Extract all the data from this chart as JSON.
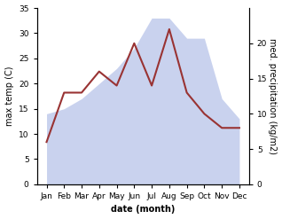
{
  "months": [
    "Jan",
    "Feb",
    "Mar",
    "Apr",
    "May",
    "Jun",
    "Jul",
    "Aug",
    "Sep",
    "Oct",
    "Nov",
    "Dec"
  ],
  "max_temp": [
    14.0,
    15.0,
    17.0,
    20.0,
    23.0,
    27.0,
    33.0,
    33.0,
    29.0,
    29.0,
    17.0,
    13.0
  ],
  "precipitation": [
    6.0,
    13.0,
    13.0,
    16.0,
    14.0,
    20.0,
    14.0,
    22.0,
    13.0,
    10.0,
    8.0,
    8.0
  ],
  "temp_fill_color": "#b3c0e8",
  "temp_fill_alpha": 0.7,
  "precip_color": "#993333",
  "precip_linewidth": 1.5,
  "ylim_left": [
    0,
    35
  ],
  "ylim_right": [
    0,
    25
  ],
  "yticks_left": [
    0,
    5,
    10,
    15,
    20,
    25,
    30,
    35
  ],
  "yticks_right": [
    0,
    5,
    10,
    15,
    20
  ],
  "ylabel_left": "max temp (C)",
  "ylabel_right": "med. precipitation (kg/m2)",
  "xlabel": "date (month)",
  "xlabel_fontweight": "bold",
  "label_fontsize": 7,
  "tick_fontsize": 6.5
}
